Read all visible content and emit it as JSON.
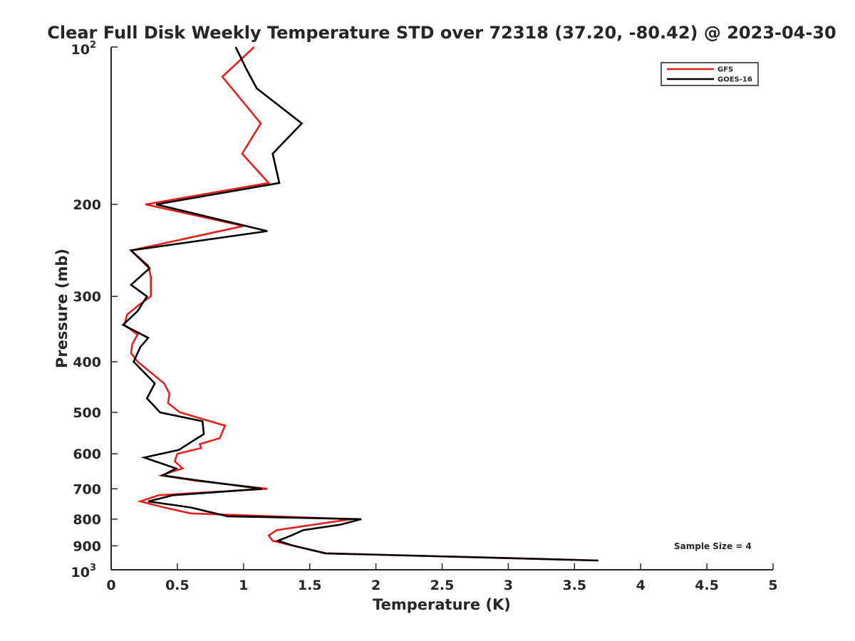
{
  "chart_data": {
    "type": "line",
    "title": "Clear Full Disk Weekly Temperature STD over 72318 (37.20, -80.42) @ 2023-04-30",
    "xlabel": "Temperature (K)",
    "ylabel": "Pressure (mb)",
    "xlim": [
      0,
      5
    ],
    "ylim": [
      100,
      1000
    ],
    "y_scale": "log",
    "y_reversed": true,
    "grid": false,
    "legend_position": "top-right",
    "x_ticks": [
      0,
      0.5,
      1,
      1.5,
      2,
      2.5,
      3,
      3.5,
      4,
      4.5,
      5
    ],
    "x_tick_labels": [
      "0",
      "0.5",
      "1",
      "1.5",
      "2",
      "2.5",
      "3",
      "3.5",
      "4",
      "4.5",
      "5"
    ],
    "y_ticks": [
      200,
      300,
      400,
      500,
      600,
      700,
      800,
      900
    ],
    "y_tick_labels": [
      "200",
      "300",
      "400",
      "500",
      "600",
      "700",
      "800",
      "900"
    ],
    "y_end_ticks": {
      "top": {
        "value": 100,
        "base": "10",
        "exp": "2"
      },
      "bottom": {
        "value": 1000,
        "base": "10",
        "exp": "3"
      }
    },
    "annotation": "Sample Size = 4",
    "series": [
      {
        "name": "GFS",
        "color": "#e3201b",
        "points": [
          [
            1.08,
            100
          ],
          [
            0.84,
            114
          ],
          [
            1.13,
            140
          ],
          [
            0.99,
            160
          ],
          [
            1.19,
            182
          ],
          [
            0.26,
            200
          ],
          [
            1.0,
            220
          ],
          [
            0.15,
            245
          ],
          [
            0.28,
            262
          ],
          [
            0.3,
            275
          ],
          [
            0.3,
            300
          ],
          [
            0.22,
            310
          ],
          [
            0.12,
            325
          ],
          [
            0.1,
            340
          ],
          [
            0.2,
            355
          ],
          [
            0.16,
            370
          ],
          [
            0.15,
            385
          ],
          [
            0.2,
            400
          ],
          [
            0.4,
            440
          ],
          [
            0.44,
            460
          ],
          [
            0.43,
            480
          ],
          [
            0.52,
            500
          ],
          [
            0.86,
            530
          ],
          [
            0.82,
            560
          ],
          [
            0.67,
            575
          ],
          [
            0.68,
            585
          ],
          [
            0.5,
            600
          ],
          [
            0.48,
            620
          ],
          [
            0.54,
            640
          ],
          [
            0.45,
            650
          ],
          [
            0.38,
            660
          ],
          [
            0.63,
            675
          ],
          [
            1.18,
            700
          ],
          [
            0.36,
            720
          ],
          [
            0.22,
            740
          ],
          [
            0.4,
            760
          ],
          [
            0.6,
            780
          ],
          [
            1.82,
            800
          ],
          [
            1.67,
            810
          ],
          [
            1.25,
            840
          ],
          [
            1.19,
            860
          ],
          [
            1.22,
            880
          ],
          [
            1.38,
            900
          ],
          [
            1.62,
            930
          ],
          [
            3.68,
            960
          ]
        ]
      },
      {
        "name": "GOES-16",
        "color": "#000000",
        "points": [
          [
            0.94,
            100
          ],
          [
            1.02,
            110
          ],
          [
            1.1,
            120
          ],
          [
            1.44,
            140
          ],
          [
            1.22,
            160
          ],
          [
            1.27,
            182
          ],
          [
            0.34,
            200
          ],
          [
            1.18,
            225
          ],
          [
            0.15,
            245
          ],
          [
            0.29,
            265
          ],
          [
            0.15,
            285
          ],
          [
            0.27,
            300
          ],
          [
            0.2,
            320
          ],
          [
            0.09,
            340
          ],
          [
            0.28,
            360
          ],
          [
            0.22,
            375
          ],
          [
            0.17,
            400
          ],
          [
            0.33,
            440
          ],
          [
            0.27,
            470
          ],
          [
            0.37,
            500
          ],
          [
            0.69,
            520
          ],
          [
            0.7,
            550
          ],
          [
            0.51,
            590
          ],
          [
            0.25,
            610
          ],
          [
            0.49,
            640
          ],
          [
            0.39,
            660
          ],
          [
            0.66,
            675
          ],
          [
            1.14,
            700
          ],
          [
            0.47,
            720
          ],
          [
            0.28,
            740
          ],
          [
            0.6,
            760
          ],
          [
            0.88,
            790
          ],
          [
            1.89,
            800
          ],
          [
            1.73,
            820
          ],
          [
            1.45,
            840
          ],
          [
            1.36,
            860
          ],
          [
            1.26,
            880
          ],
          [
            1.38,
            900
          ],
          [
            1.62,
            930
          ],
          [
            3.68,
            960
          ]
        ]
      }
    ]
  }
}
